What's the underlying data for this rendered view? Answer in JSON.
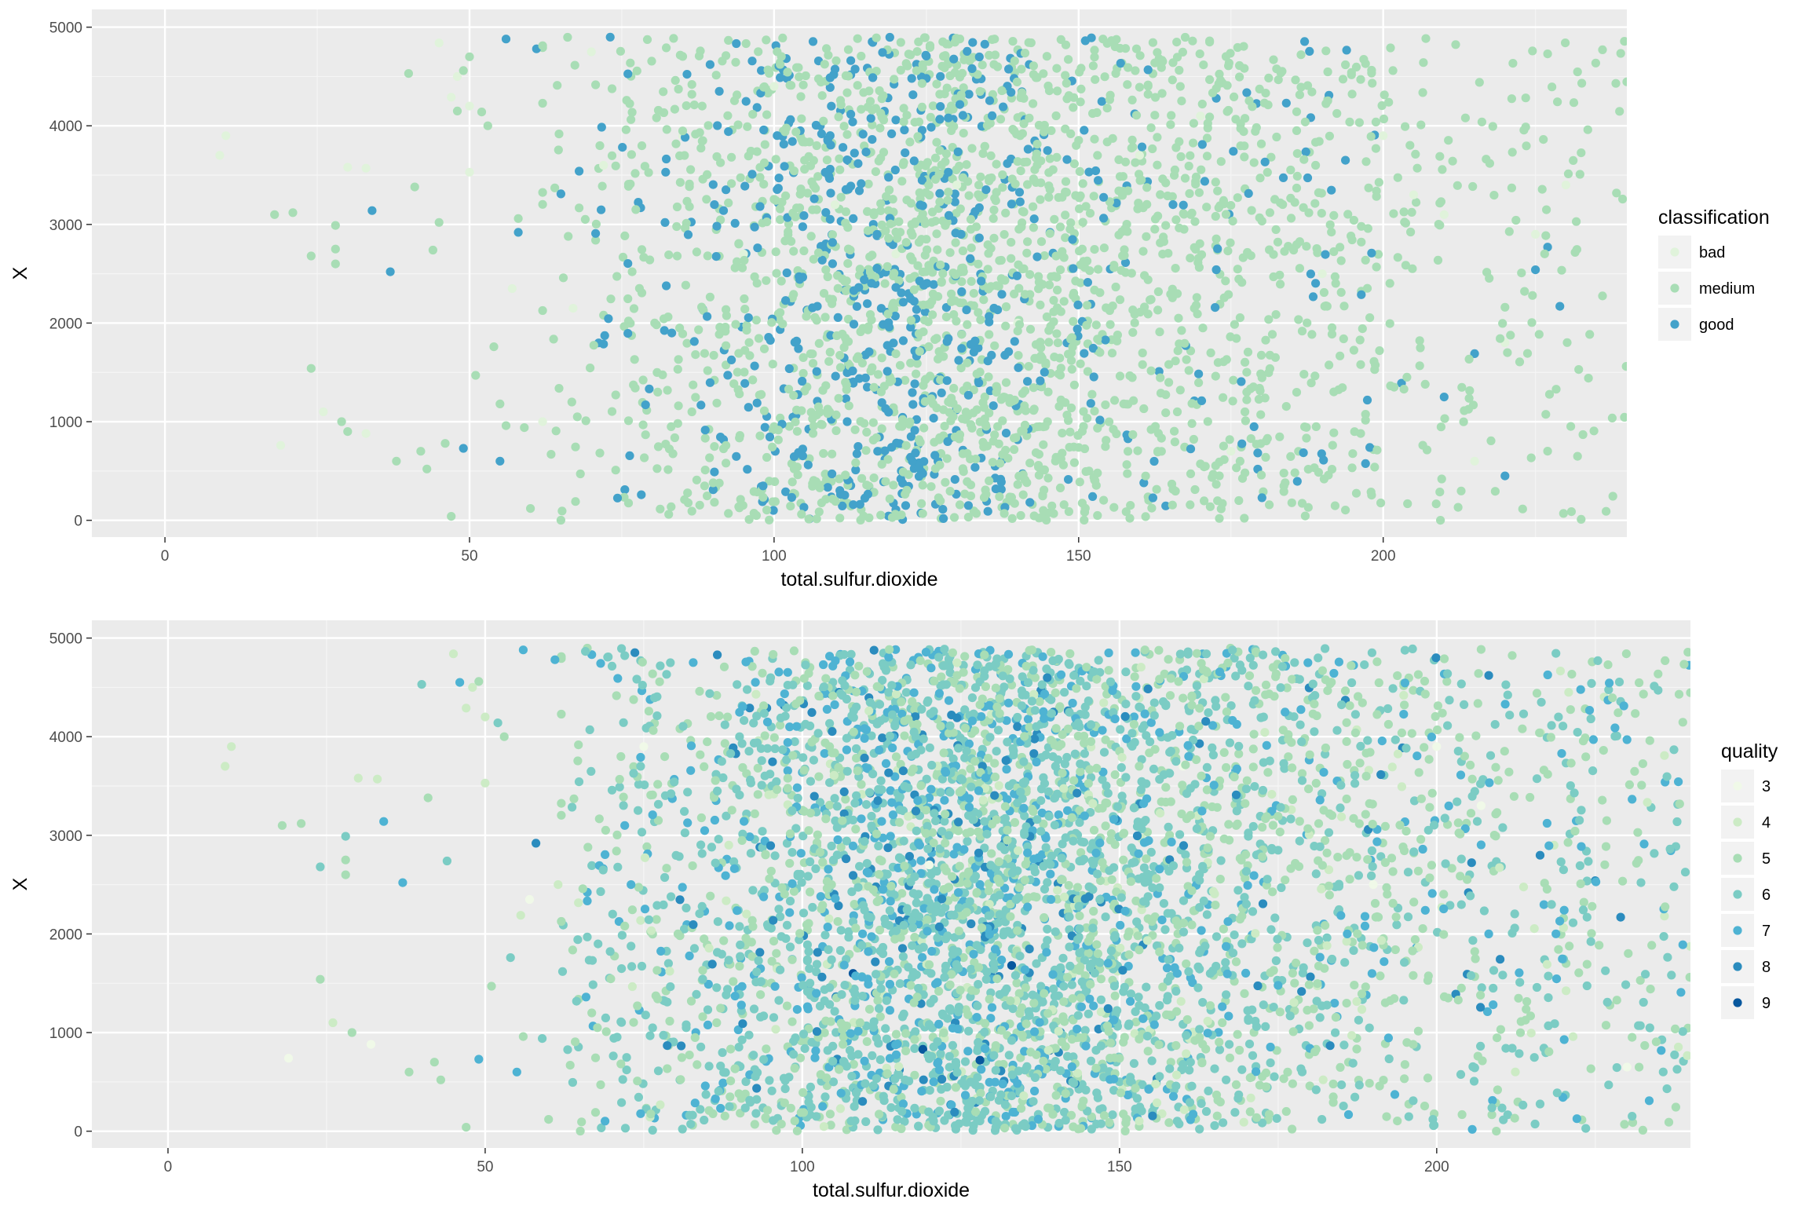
{
  "chart_data": [
    {
      "type": "scatter",
      "xlabel": "total.sulfur.dioxide",
      "ylabel": "X",
      "xlim": [
        -12,
        240
      ],
      "ylim": [
        -170,
        5180
      ],
      "x_ticks": [
        0,
        50,
        100,
        150,
        200
      ],
      "y_ticks": [
        0,
        1000,
        2000,
        3000,
        4000,
        5000
      ],
      "x_tick_labels": [
        "0",
        "50",
        "100",
        "150",
        "200"
      ],
      "y_tick_labels": [
        "0",
        "1000",
        "2000",
        "3000",
        "4000",
        "5000"
      ],
      "grid": true,
      "legend": {
        "title": "classification",
        "position": "right",
        "entries": [
          {
            "label": "bad",
            "color": "#e0f3db"
          },
          {
            "label": "medium",
            "color": "#a8ddb5"
          },
          {
            "label": "good",
            "color": "#43a2ca"
          }
        ]
      },
      "series": [
        {
          "name": "bad",
          "color": "#e0f3db",
          "points": [
            [
              9,
              3700
            ],
            [
              10,
              3900
            ],
            [
              19,
              760
            ],
            [
              26,
              1100
            ],
            [
              30,
              3580
            ],
            [
              33,
              3570
            ],
            [
              33,
              880
            ],
            [
              45,
              4840
            ],
            [
              47,
              4290
            ],
            [
              48,
              4500
            ],
            [
              50,
              3530
            ],
            [
              50,
              4200
            ],
            [
              57,
              2350
            ],
            [
              67,
              2150
            ],
            [
              70,
              4750
            ],
            [
              72,
              3600
            ],
            [
              85,
              3900
            ],
            [
              100,
              4400
            ],
            [
              110,
              3200
            ],
            [
              120,
              2700
            ],
            [
              130,
              3400
            ],
            [
              140,
              2000
            ],
            [
              150,
              3000
            ],
            [
              160,
              3700
            ],
            [
              170,
              4100
            ],
            [
              180,
              3800
            ],
            [
              190,
              2500
            ],
            [
              200,
              3900
            ],
            [
              205,
              3300
            ],
            [
              210,
              3100
            ],
            [
              220,
              1800
            ],
            [
              225,
              2900
            ],
            [
              230,
              3400
            ],
            [
              62,
              1000
            ],
            [
              95,
              2700
            ],
            [
              155,
              1800
            ],
            [
              175,
              700
            ],
            [
              215,
              600
            ]
          ]
        },
        {
          "name": "medium",
          "color": "#a8ddb5",
          "cloud": [
            {
              "n": 1500,
              "x": [
                62,
                240
              ],
              "y": [
                0,
                4900
              ],
              "seed": 11,
              "cluster": 140,
              "spread": 60
            },
            {
              "n": 700,
              "x": [
                75,
                200
              ],
              "y": [
                0,
                4900
              ],
              "seed": 23,
              "cluster": 130,
              "spread": 40
            }
          ],
          "points": [
            [
              18,
              3100
            ],
            [
              21,
              3120
            ],
            [
              24,
              1540
            ],
            [
              24,
              2680
            ],
            [
              28,
              2600
            ],
            [
              28,
              2750
            ],
            [
              28,
              2990
            ],
            [
              29,
              1000
            ],
            [
              30,
              900
            ],
            [
              38,
              600
            ],
            [
              40,
              4530
            ],
            [
              41,
              3380
            ],
            [
              42,
              700
            ],
            [
              43,
              520
            ],
            [
              44,
              2740
            ],
            [
              45,
              3020
            ],
            [
              46,
              780
            ],
            [
              47,
              40
            ],
            [
              48,
              4150
            ],
            [
              49,
              4560
            ],
            [
              50,
              4700
            ],
            [
              51,
              1470
            ],
            [
              52,
              4140
            ],
            [
              53,
              4000
            ],
            [
              54,
              1760
            ],
            [
              55,
              1180
            ],
            [
              56,
              960
            ],
            [
              58,
              3060
            ],
            [
              59,
              940
            ],
            [
              60,
              120
            ]
          ]
        },
        {
          "name": "good",
          "color": "#43a2ca",
          "cloud": [
            {
              "n": 620,
              "x": [
                70,
                200
              ],
              "y": [
                0,
                4900
              ],
              "seed": 37,
              "cluster": 120,
              "spread": 30
            }
          ],
          "points": [
            [
              34,
              3140
            ],
            [
              37,
              2520
            ],
            [
              49,
              730
            ],
            [
              55,
              600
            ],
            [
              56,
              4880
            ],
            [
              58,
              2920
            ],
            [
              61,
              4780
            ],
            [
              65,
              3310
            ],
            [
              68,
              3540
            ],
            [
              203,
              1390
            ],
            [
              210,
              1250
            ],
            [
              215,
              1690
            ],
            [
              220,
              450
            ],
            [
              225,
              2540
            ],
            [
              227,
              2770
            ],
            [
              229,
              2170
            ]
          ]
        }
      ]
    },
    {
      "type": "scatter",
      "xlabel": "total.sulfur.dioxide",
      "ylabel": "X",
      "xlim": [
        -12,
        240
      ],
      "ylim": [
        -170,
        5180
      ],
      "x_ticks": [
        0,
        50,
        100,
        150,
        200
      ],
      "y_ticks": [
        0,
        1000,
        2000,
        3000,
        4000,
        5000
      ],
      "x_tick_labels": [
        "0",
        "50",
        "100",
        "150",
        "200"
      ],
      "y_tick_labels": [
        "0",
        "1000",
        "2000",
        "3000",
        "4000",
        "5000"
      ],
      "grid": true,
      "legend": {
        "title": "quality",
        "position": "right",
        "entries": [
          {
            "label": "3",
            "color": "#f0f9e8"
          },
          {
            "label": "4",
            "color": "#ccebc5"
          },
          {
            "label": "5",
            "color": "#a8ddb5"
          },
          {
            "label": "6",
            "color": "#7bccc4"
          },
          {
            "label": "7",
            "color": "#4eb3d3"
          },
          {
            "label": "8",
            "color": "#2b8cbe"
          },
          {
            "label": "9",
            "color": "#08589e"
          }
        ]
      },
      "series": [
        {
          "name": "3",
          "color": "#f0f9e8",
          "points": [
            [
              19,
              740
            ],
            [
              32,
              880
            ],
            [
              57,
              2350
            ],
            [
              75,
              3900
            ],
            [
              120,
              2700
            ],
            [
              160,
              3700
            ],
            [
              200,
              3900
            ],
            [
              207,
              3300
            ],
            [
              230,
              650
            ],
            [
              190,
              2500
            ],
            [
              140,
              2000
            ]
          ]
        },
        {
          "name": "4",
          "color": "#ccebc5",
          "cloud": [
            {
              "n": 160,
              "x": [
                55,
                240
              ],
              "y": [
                0,
                4900
              ],
              "seed": 101,
              "cluster": 150,
              "spread": 70
            }
          ],
          "points": [
            [
              9,
              3700
            ],
            [
              10,
              3900
            ],
            [
              26,
              1100
            ],
            [
              30,
              3580
            ],
            [
              33,
              3570
            ],
            [
              45,
              4840
            ],
            [
              47,
              4290
            ],
            [
              48,
              4500
            ],
            [
              50,
              3530
            ],
            [
              50,
              4200
            ]
          ]
        },
        {
          "name": "5",
          "color": "#a8ddb5",
          "cloud": [
            {
              "n": 1450,
              "x": [
                62,
                240
              ],
              "y": [
                0,
                4900
              ],
              "seed": 11,
              "cluster": 140,
              "spread": 60
            }
          ],
          "points": [
            [
              18,
              3100
            ],
            [
              21,
              3120
            ],
            [
              24,
              1540
            ],
            [
              28,
              2600
            ],
            [
              28,
              2750
            ],
            [
              29,
              1000
            ],
            [
              38,
              600
            ],
            [
              41,
              3380
            ],
            [
              42,
              700
            ],
            [
              43,
              520
            ],
            [
              47,
              40
            ],
            [
              49,
              4560
            ],
            [
              51,
              1470
            ],
            [
              53,
              4000
            ],
            [
              56,
              960
            ],
            [
              60,
              120
            ]
          ]
        },
        {
          "name": "6",
          "color": "#7bccc4",
          "cloud": [
            {
              "n": 1900,
              "x": [
                62,
                240
              ],
              "y": [
                0,
                4900
              ],
              "seed": 53,
              "cluster": 130,
              "spread": 45
            }
          ],
          "points": [
            [
              24,
              2680
            ],
            [
              28,
              2990
            ],
            [
              40,
              4530
            ],
            [
              44,
              2740
            ],
            [
              52,
              4140
            ],
            [
              54,
              1760
            ],
            [
              59,
              940
            ]
          ]
        },
        {
          "name": "7",
          "color": "#4eb3d3",
          "cloud": [
            {
              "n": 720,
              "x": [
                65,
                240
              ],
              "y": [
                0,
                4900
              ],
              "seed": 71,
              "cluster": 125,
              "spread": 35
            }
          ],
          "points": [
            [
              34,
              3140
            ],
            [
              37,
              2520
            ],
            [
              46,
              4550
            ],
            [
              49,
              730
            ],
            [
              55,
              600
            ],
            [
              56,
              4880
            ],
            [
              61,
              4780
            ],
            [
              236,
              3540
            ],
            [
              230,
              3970
            ]
          ]
        },
        {
          "name": "8",
          "color": "#2b8cbe",
          "cloud": [
            {
              "n": 170,
              "x": [
                70,
                220
              ],
              "y": [
                0,
                4900
              ],
              "seed": 89,
              "cluster": 125,
              "spread": 30
            }
          ],
          "points": [
            [
              58,
              2920
            ],
            [
              203,
              1390
            ],
            [
              225,
              2540
            ],
            [
              229,
              2170
            ]
          ]
        },
        {
          "name": "9",
          "color": "#08589e",
          "points": [
            [
              108,
              1600
            ],
            [
              119,
              830
            ],
            [
              133,
              1680
            ],
            [
              128,
              720
            ],
            [
              139,
              820
            ]
          ]
        }
      ]
    }
  ]
}
